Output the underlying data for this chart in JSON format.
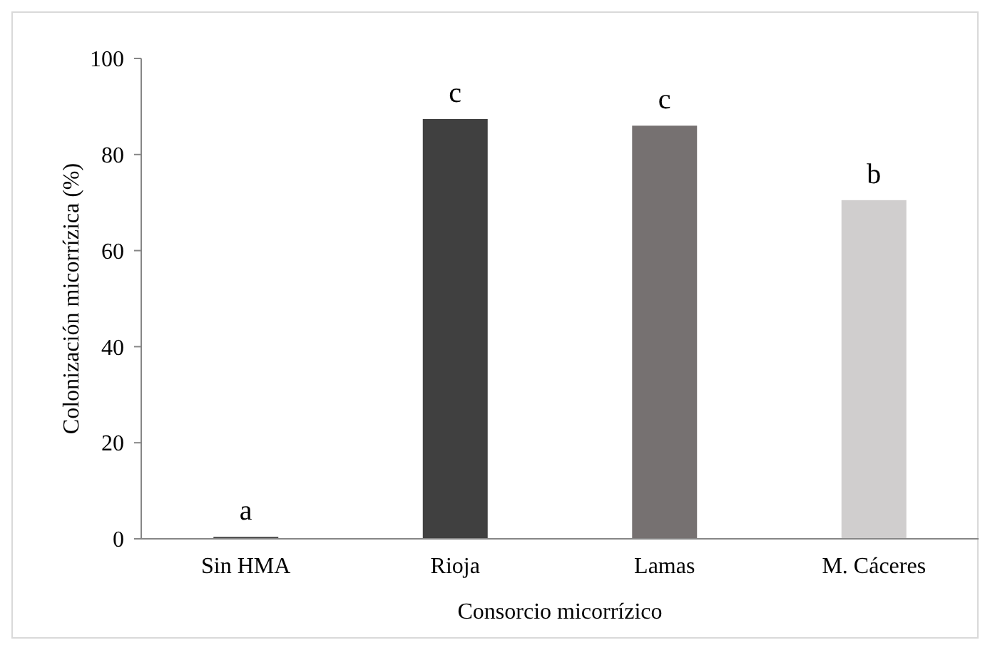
{
  "chart_data": {
    "type": "bar",
    "xlabel": "Consorcio micorrízico",
    "ylabel": "Colonización micorrízica (%)",
    "categories": [
      "Sin HMA",
      "Rioja",
      "Lamas",
      "M. Cáceres"
    ],
    "values": [
      0.4,
      87.4,
      86.0,
      70.5
    ],
    "colors": [
      "#404040",
      "#404040",
      "#767171",
      "#d0cece"
    ],
    "ylim": [
      0,
      100
    ],
    "yticks": [
      0,
      20,
      40,
      60,
      80,
      100
    ],
    "grid": false,
    "annotations": [
      {
        "text": "a",
        "x": "Sin HMA",
        "y": 0.4
      },
      {
        "text": "c",
        "x": "Rioja",
        "y": 87.4
      },
      {
        "text": "c",
        "x": "Lamas",
        "y": 86.0
      },
      {
        "text": "b",
        "x": "M. Cáceres",
        "y": 70.5
      }
    ]
  }
}
